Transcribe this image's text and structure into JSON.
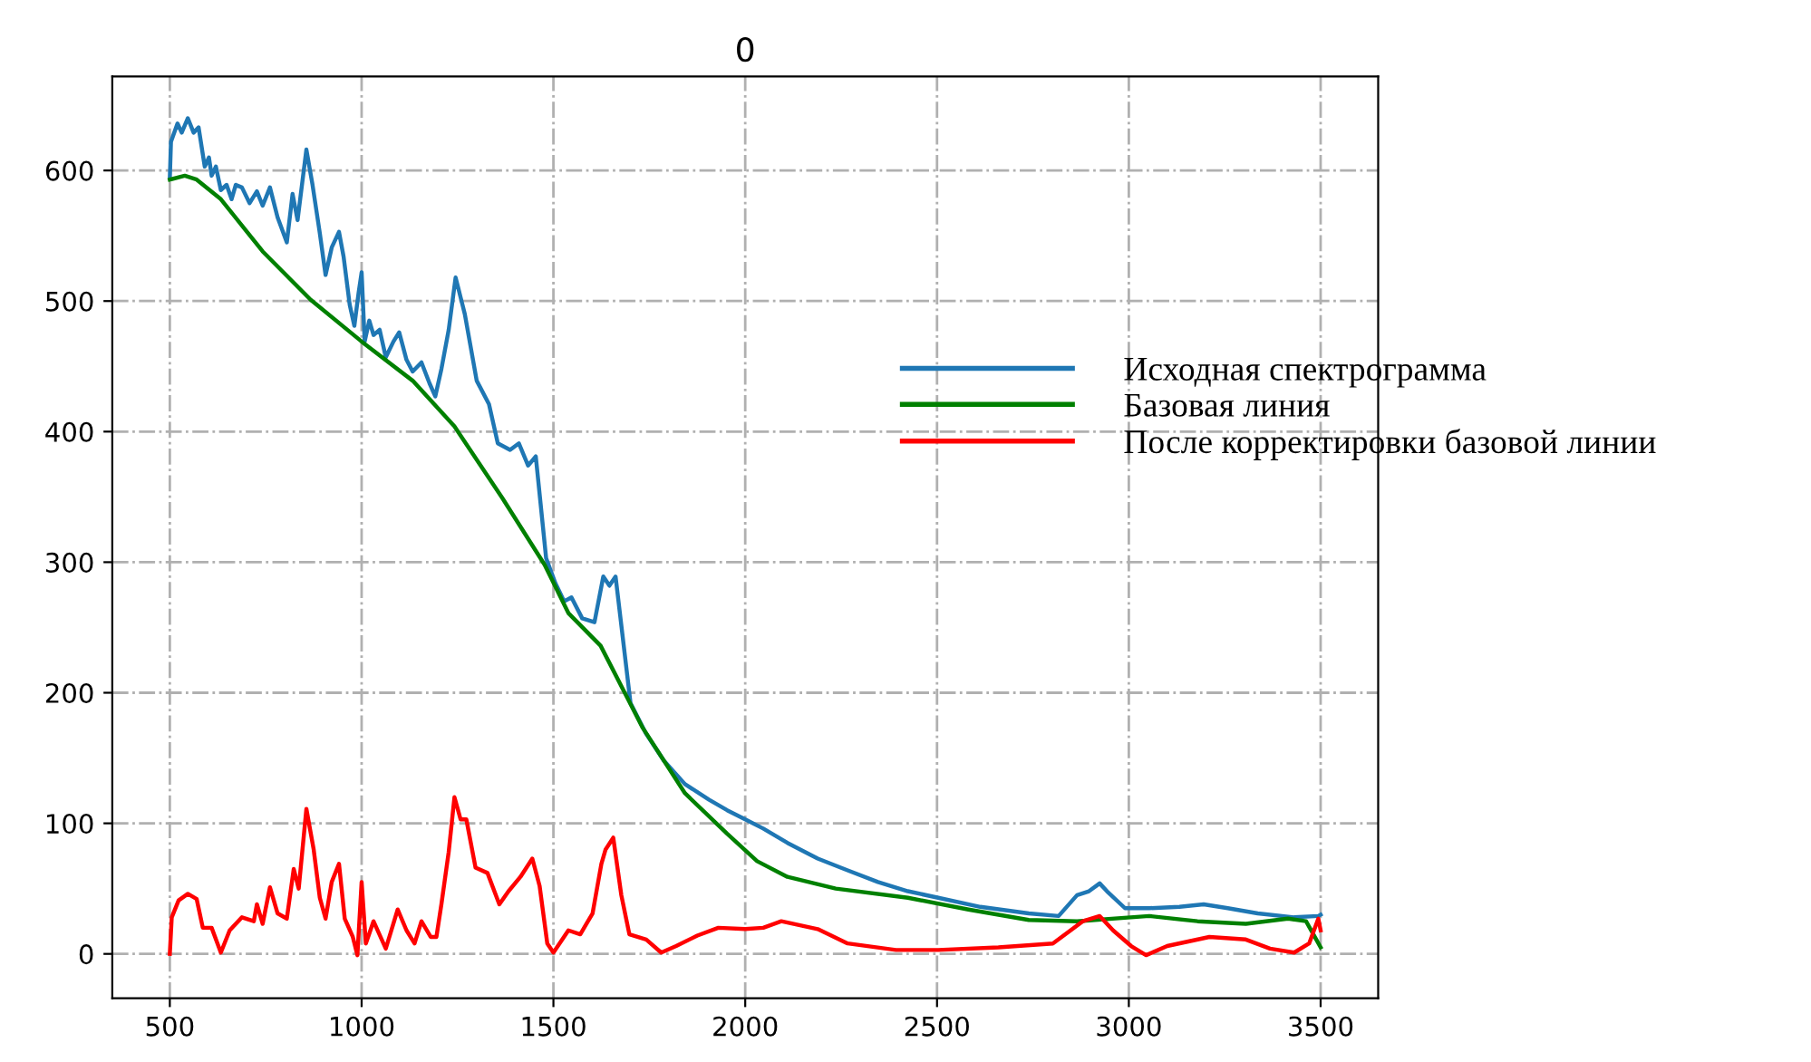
{
  "chart_data": {
    "type": "line",
    "title": "0",
    "xlim": [
      350,
      3650
    ],
    "xticks": [
      500,
      1000,
      1500,
      2000,
      2500,
      3000,
      3500
    ],
    "ylim": [
      -34,
      672
    ],
    "yticks": [
      0,
      100,
      200,
      300,
      400,
      500,
      600
    ],
    "grid": true,
    "legend": "right",
    "line_style": "solid",
    "series": [
      {
        "name": "Исходная спектрограмма",
        "color": "#1f77b4",
        "x": [
          500,
          503,
          520,
          531,
          547,
          562,
          575,
          591,
          602,
          609,
          620,
          633,
          648,
          661,
          672,
          688,
          708,
          727,
          742,
          761,
          781,
          805,
          820,
          833,
          856,
          872,
          891,
          906,
          922,
          941,
          953,
          969,
          981,
          992,
          1000,
          1008,
          1020,
          1031,
          1047,
          1063,
          1083,
          1098,
          1117,
          1133,
          1156,
          1177,
          1192,
          1208,
          1227,
          1245,
          1269,
          1300,
          1332,
          1355,
          1387,
          1410,
          1434,
          1454,
          1481,
          1505,
          1528,
          1547,
          1575,
          1607,
          1630,
          1646,
          1662,
          1701,
          1741,
          1788,
          1843,
          1906,
          1953,
          2000,
          2047,
          2110,
          2189,
          2267,
          2346,
          2424,
          2503,
          2613,
          2739,
          2817,
          2865,
          2896,
          2924,
          2943,
          2990,
          3053,
          3132,
          3195,
          3258,
          3336,
          3431,
          3494,
          3500
        ],
        "values": [
          594,
          622,
          636,
          629,
          640,
          629,
          633,
          603,
          610,
          596,
          603,
          585,
          589,
          578,
          589,
          587,
          575,
          584,
          573,
          587,
          564,
          545,
          582,
          562,
          616,
          589,
          552,
          520,
          541,
          553,
          534,
          497,
          481,
          506,
          522,
          469,
          485,
          474,
          478,
          457,
          469,
          476,
          455,
          446,
          453,
          437,
          427,
          448,
          478,
          518,
          490,
          439,
          421,
          391,
          386,
          391,
          374,
          381,
          303,
          284,
          270,
          273,
          257,
          254,
          289,
          282,
          289,
          192,
          169,
          148,
          130,
          118,
          110,
          103,
          96,
          85,
          73,
          64,
          55,
          48,
          43,
          36,
          31,
          29,
          45,
          48,
          54,
          48,
          35,
          35,
          36,
          38,
          35,
          31,
          28,
          29,
          30
        ]
      },
      {
        "name": "Базовая линия",
        "color": "#008000",
        "x": [
          500,
          539,
          570,
          633,
          742,
          867,
          1000,
          1133,
          1242,
          1367,
          1477,
          1539,
          1623,
          1733,
          1843,
          1953,
          2031,
          2110,
          2236,
          2424,
          2582,
          2739,
          2865,
          3053,
          3179,
          3305,
          3415,
          3462,
          3500
        ],
        "values": [
          593,
          596,
          593,
          578,
          538,
          501,
          469,
          439,
          404,
          349,
          298,
          261,
          236,
          173,
          123,
          92,
          71,
          59,
          50,
          43,
          34,
          26,
          25,
          29,
          25,
          23,
          27,
          25,
          5
        ]
      },
      {
        "name": "После корректировки базовой линии",
        "color": "#ff0000",
        "x": [
          500,
          505,
          523,
          547,
          570,
          586,
          609,
          633,
          656,
          688,
          719,
          727,
          742,
          761,
          781,
          805,
          823,
          836,
          856,
          875,
          891,
          906,
          922,
          941,
          956,
          977,
          989,
          1000,
          1011,
          1031,
          1063,
          1094,
          1117,
          1138,
          1156,
          1180,
          1195,
          1208,
          1227,
          1242,
          1258,
          1273,
          1297,
          1328,
          1359,
          1383,
          1414,
          1445,
          1464,
          1484,
          1500,
          1539,
          1570,
          1602,
          1625,
          1636,
          1656,
          1677,
          1698,
          1742,
          1781,
          1820,
          1875,
          1930,
          2000,
          2047,
          2094,
          2189,
          2267,
          2393,
          2503,
          2660,
          2802,
          2880,
          2924,
          2959,
          3006,
          3045,
          3100,
          3210,
          3305,
          3368,
          3431,
          3470,
          3494,
          3500
        ],
        "values": [
          0,
          28,
          41,
          46,
          42,
          20,
          20,
          1,
          18,
          28,
          25,
          38,
          23,
          51,
          31,
          27,
          65,
          50,
          111,
          80,
          43,
          27,
          55,
          69,
          27,
          13,
          -1,
          55,
          8,
          25,
          4,
          34,
          18,
          8,
          25,
          13,
          13,
          38,
          78,
          120,
          103,
          103,
          66,
          62,
          38,
          48,
          59,
          73,
          52,
          8,
          1,
          18,
          15,
          31,
          69,
          80,
          89,
          45,
          15,
          11,
          1,
          6,
          14,
          20,
          19,
          20,
          25,
          19,
          8,
          3,
          3,
          5,
          8,
          25,
          29,
          18,
          6,
          -1,
          6,
          13,
          11,
          4,
          1,
          8,
          27,
          18
        ]
      }
    ]
  }
}
